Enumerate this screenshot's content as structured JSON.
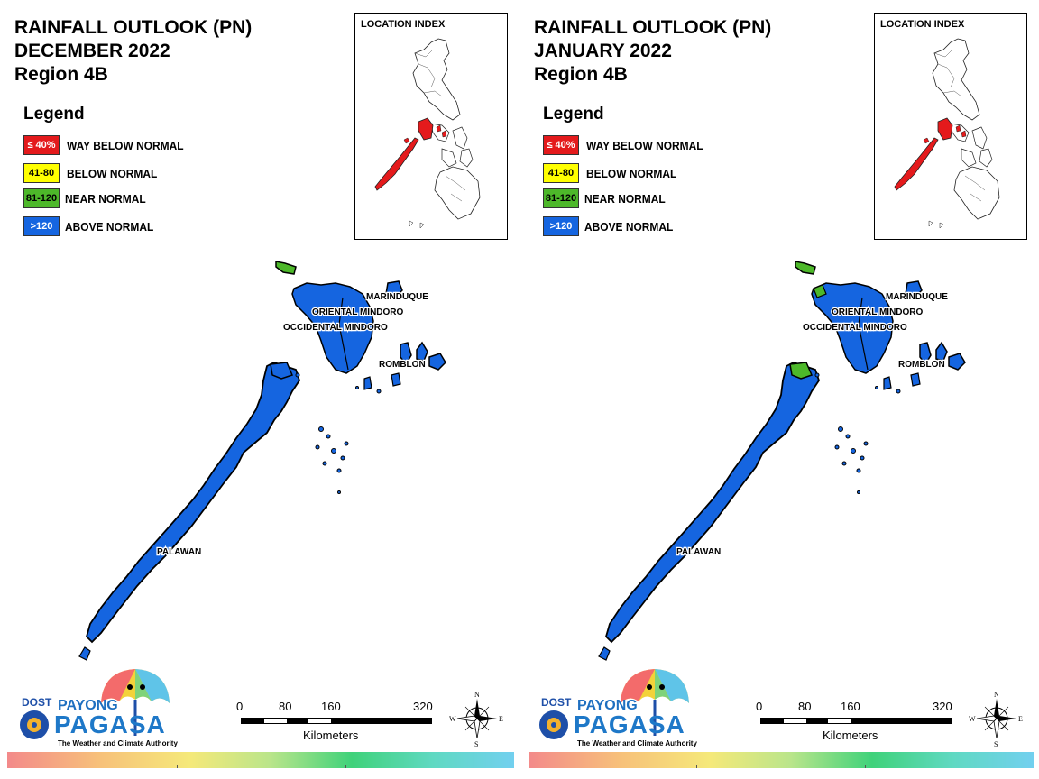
{
  "panels": [
    {
      "title": [
        "RAINFALL OUTLOOK (PN)",
        "DECEMBER 2022",
        "Region 4B"
      ],
      "legend_title": "Legend",
      "legend": [
        {
          "range": "≤ 40%",
          "label": "WAY BELOW NORMAL",
          "color": "#e41a1c",
          "text_color": "#ffffff"
        },
        {
          "range": "41-80",
          "label": "BELOW NORMAL",
          "color": "#ffff00",
          "text_color": "#000000"
        },
        {
          "range": "81-120",
          "label": "NEAR NORMAL",
          "color": "#4db82a",
          "text_color": "#000000"
        },
        {
          "range": ">120",
          "label": "ABOVE NORMAL",
          "color": "#1565e0",
          "text_color": "#ffffff"
        }
      ],
      "inset_title": "LOCATION INDEX",
      "provinces": [
        "MARINDUQUE",
        "ORIENTAL MINDORO",
        "OCCIDENTAL MINDORO",
        "ROMBLON",
        "PALAWAN"
      ],
      "province_classes": {
        "MARINDUQUE": ">120",
        "ORIENTAL MINDORO": ">120",
        "OCCIDENTAL MINDORO": ">120",
        "ROMBLON": ">120",
        "PALAWAN": ">120"
      },
      "scale_ticks": [
        "0",
        "80",
        "160",
        "320"
      ],
      "scale_unit": "Kilometers",
      "compass": {
        "n": "N",
        "s": "S",
        "e": "E",
        "w": "W"
      },
      "logo": {
        "dost": "DOST",
        "payong": "PAYONG",
        "pagasa": "PAGASA",
        "tagline": "The Weather and Climate Authority"
      }
    },
    {
      "title": [
        "RAINFALL OUTLOOK (PN)",
        "JANUARY 2022",
        "Region 4B"
      ],
      "legend_title": "Legend",
      "legend": [
        {
          "range": "≤ 40%",
          "label": "WAY BELOW NORMAL",
          "color": "#e41a1c",
          "text_color": "#ffffff"
        },
        {
          "range": "41-80",
          "label": "BELOW NORMAL",
          "color": "#ffff00",
          "text_color": "#000000"
        },
        {
          "range": "81-120",
          "label": "NEAR NORMAL",
          "color": "#4db82a",
          "text_color": "#000000"
        },
        {
          "range": ">120",
          "label": "ABOVE NORMAL",
          "color": "#1565e0",
          "text_color": "#ffffff"
        }
      ],
      "inset_title": "LOCATION INDEX",
      "provinces": [
        "MARINDUQUE",
        "ORIENTAL MINDORO",
        "OCCIDENTAL MINDORO",
        "ROMBLON",
        "PALAWAN"
      ],
      "province_classes": {
        "MARINDUQUE": ">120",
        "ORIENTAL MINDORO": ">120",
        "OCCIDENTAL MINDORO": ">120",
        "ROMBLON": ">120",
        "PALAWAN": ">120"
      },
      "scale_ticks": [
        "0",
        "80",
        "160",
        "320"
      ],
      "scale_unit": "Kilometers",
      "compass": {
        "n": "N",
        "s": "S",
        "e": "E",
        "w": "W"
      },
      "logo": {
        "dost": "DOST",
        "payong": "PAYONG",
        "pagasa": "PAGASA",
        "tagline": "The Weather and Climate Authority"
      }
    }
  ],
  "colors": {
    "map_fill": "#1565e0",
    "near_normal": "#4db82a",
    "way_below": "#e41a1c",
    "outline": "#000000"
  }
}
